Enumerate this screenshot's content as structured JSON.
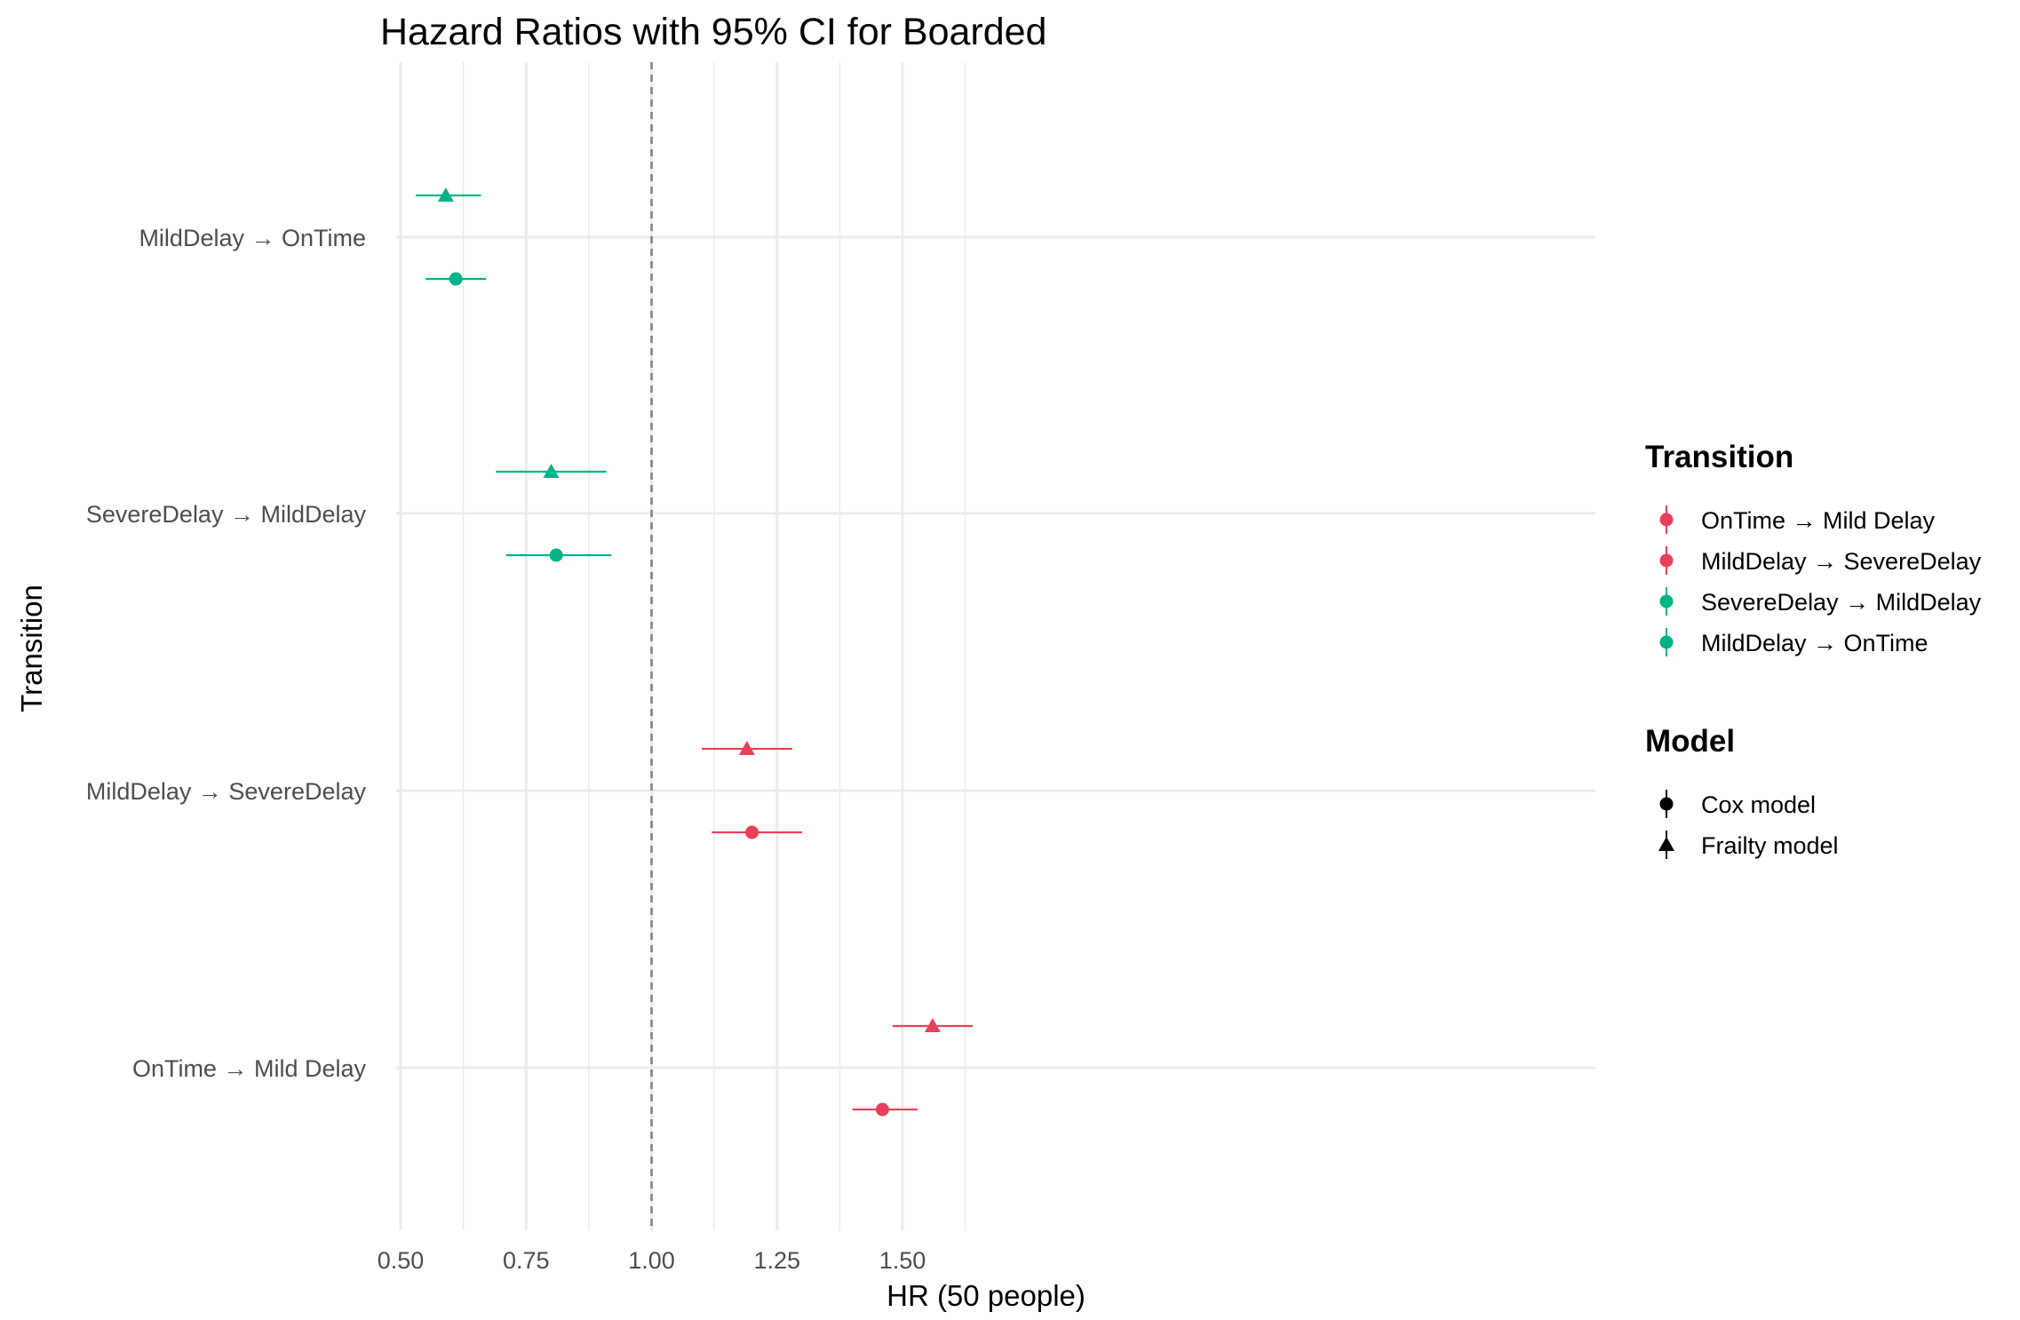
{
  "chart_data": {
    "type": "forest",
    "title": "Hazard Ratios with 95% CI for Boarded",
    "xlabel": "HR (50 people)",
    "ylabel": "Transition",
    "xlim": [
      0.5,
      1.68
    ],
    "x_ticks": [
      "0.50",
      "0.75",
      "1.00",
      "1.25",
      "1.50"
    ],
    "x_tick_values": [
      0.5,
      0.75,
      1.0,
      1.25,
      1.5
    ],
    "reference_line": 1.0,
    "categories": [
      "OnTime → Mild Delay",
      "MildDelay → SevereDelay",
      "SevereDelay → MildDelay",
      "MildDelay → OnTime"
    ],
    "grid": true,
    "points": [
      {
        "transition": "MildDelay → OnTime",
        "model": "Frailty model",
        "hr": 0.59,
        "lower": 0.53,
        "upper": 0.66
      },
      {
        "transition": "MildDelay → OnTime",
        "model": "Cox model",
        "hr": 0.61,
        "lower": 0.55,
        "upper": 0.67
      },
      {
        "transition": "SevereDelay → MildDelay",
        "model": "Frailty model",
        "hr": 0.8,
        "lower": 0.69,
        "upper": 0.91
      },
      {
        "transition": "SevereDelay → MildDelay",
        "model": "Cox model",
        "hr": 0.81,
        "lower": 0.71,
        "upper": 0.92
      },
      {
        "transition": "MildDelay → SevereDelay",
        "model": "Frailty model",
        "hr": 1.19,
        "lower": 1.1,
        "upper": 1.28
      },
      {
        "transition": "MildDelay → SevereDelay",
        "model": "Cox model",
        "hr": 1.2,
        "lower": 1.12,
        "upper": 1.3
      },
      {
        "transition": "OnTime → Mild Delay",
        "model": "Frailty model",
        "hr": 1.56,
        "lower": 1.48,
        "upper": 1.64
      },
      {
        "transition": "OnTime → Mild Delay",
        "model": "Cox model",
        "hr": 1.46,
        "lower": 1.4,
        "upper": 1.53
      }
    ],
    "legend": {
      "placement": "right",
      "transition_title": "Transition",
      "transition_items": [
        {
          "label": "OnTime → Mild Delay",
          "color": "#e8405a"
        },
        {
          "label": "MildDelay → SevereDelay",
          "color": "#e8405a"
        },
        {
          "label": "SevereDelay → MildDelay",
          "color": "#00b386"
        },
        {
          "label": "MildDelay → OnTime",
          "color": "#00b386"
        }
      ],
      "model_title": "Model",
      "model_items": [
        {
          "label": "Cox model",
          "shape": "circle"
        },
        {
          "label": "Frailty model",
          "shape": "triangle"
        }
      ]
    },
    "colors": {
      "OnTime → Mild Delay": "#e8405a",
      "MildDelay → SevereDelay": "#e8405a",
      "SevereDelay → MildDelay": "#00b386",
      "MildDelay → OnTime": "#00b386"
    }
  }
}
